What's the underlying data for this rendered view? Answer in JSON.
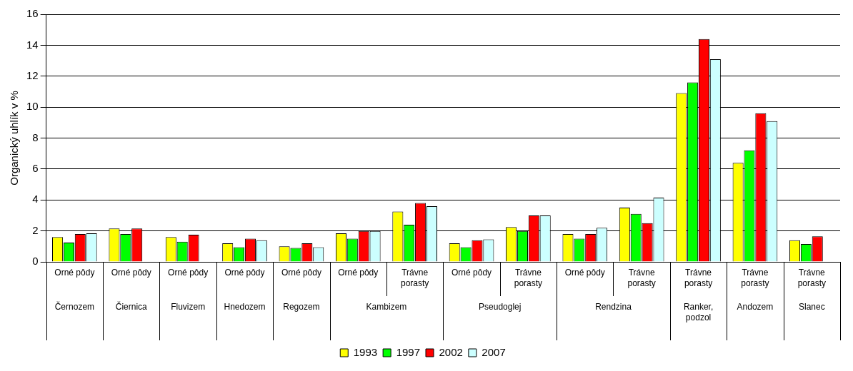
{
  "chart_data": {
    "type": "bar",
    "ylabel": "Organický uhlík v %",
    "categories": [
      "Orné pôdy",
      "Orné pôdy",
      "Orné pôdy",
      "Orné pôdy",
      "Orné pôdy",
      "Orné pôdy",
      "Trávne porasty",
      "Orné pôdy",
      "Trávne porasty",
      "Orné pôdy",
      "Trávne porasty",
      "Trávne porasty",
      "Trávne porasty",
      "Trávne porasty"
    ],
    "annotations": [
      "Černozem",
      "Čiernica",
      "Fluvizem",
      "Hnedozem",
      "Regozem",
      "Kambizem",
      "Pseudoglej",
      "Rendzina",
      "Ranker, podzol",
      "Andozem",
      "Slanec"
    ],
    "series": [
      {
        "name": "1993",
        "color": "#ffff00",
        "values": [
          1.6,
          2.15,
          1.6,
          1.2,
          1.0,
          1.85,
          3.25,
          1.2,
          2.25,
          1.8,
          3.5,
          10.9,
          6.4,
          1.4
        ]
      },
      {
        "name": "1997",
        "color": "#00ff00",
        "values": [
          1.25,
          1.8,
          1.3,
          0.95,
          0.9,
          1.5,
          2.4,
          0.95,
          2.0,
          1.5,
          3.1,
          11.6,
          7.2,
          1.15
        ]
      },
      {
        "name": "2002",
        "color": "#ff0000",
        "values": [
          1.8,
          2.15,
          1.75,
          1.5,
          1.2,
          2.0,
          3.8,
          1.4,
          3.0,
          1.8,
          2.5,
          14.4,
          9.6,
          1.65
        ]
      },
      {
        "name": "2007",
        "color": "#ccffff",
        "values": [
          1.85,
          null,
          null,
          1.4,
          0.95,
          2.0,
          3.6,
          1.45,
          3.0,
          2.2,
          4.15,
          13.1,
          9.1,
          null
        ]
      }
    ],
    "ylim": [
      0,
      16
    ],
    "yticks": [
      0,
      2,
      4,
      6,
      8,
      10,
      12,
      14,
      16
    ],
    "grid": "y",
    "legend": "bottom"
  }
}
